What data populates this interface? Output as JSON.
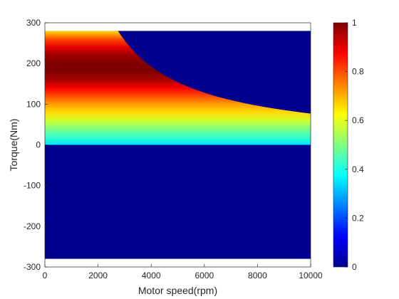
{
  "chart_data": {
    "type": "heatmap",
    "title": "",
    "xlabel": "Motor speed(rpm)",
    "ylabel": "Torque(Nm)",
    "xlim": [
      0,
      10000
    ],
    "ylim": [
      -300,
      300
    ],
    "x_ticks": [
      "0",
      "2000",
      "4000",
      "6000",
      "8000",
      "10000"
    ],
    "y_ticks": [
      "300",
      "200",
      "100",
      "0",
      "-100",
      "-200",
      "-300"
    ],
    "data_extent": {
      "x": [
        0,
        10000
      ],
      "y": [
        -280,
        280
      ]
    },
    "colormap": "jet",
    "colorbar": {
      "range": [
        0,
        1
      ],
      "ticks": [
        "0",
        "0.2",
        "0.4",
        "0.6",
        "0.8",
        "1"
      ]
    },
    "max_torque_envelope": {
      "rated_torque": 280,
      "base_speed": 2750,
      "max_speed": 10000,
      "torque_at_max_speed": 77
    },
    "efficiency_profile": {
      "torque": [
        0,
        20,
        40,
        60,
        80,
        100,
        120,
        140,
        160,
        180,
        200,
        220,
        240,
        260,
        280
      ],
      "value": [
        0.35,
        0.43,
        0.5,
        0.58,
        0.66,
        0.72,
        0.8,
        0.88,
        0.96,
        1.0,
        1.0,
        0.97,
        0.9,
        0.8,
        0.66
      ]
    },
    "grid": false,
    "legend": "none"
  }
}
